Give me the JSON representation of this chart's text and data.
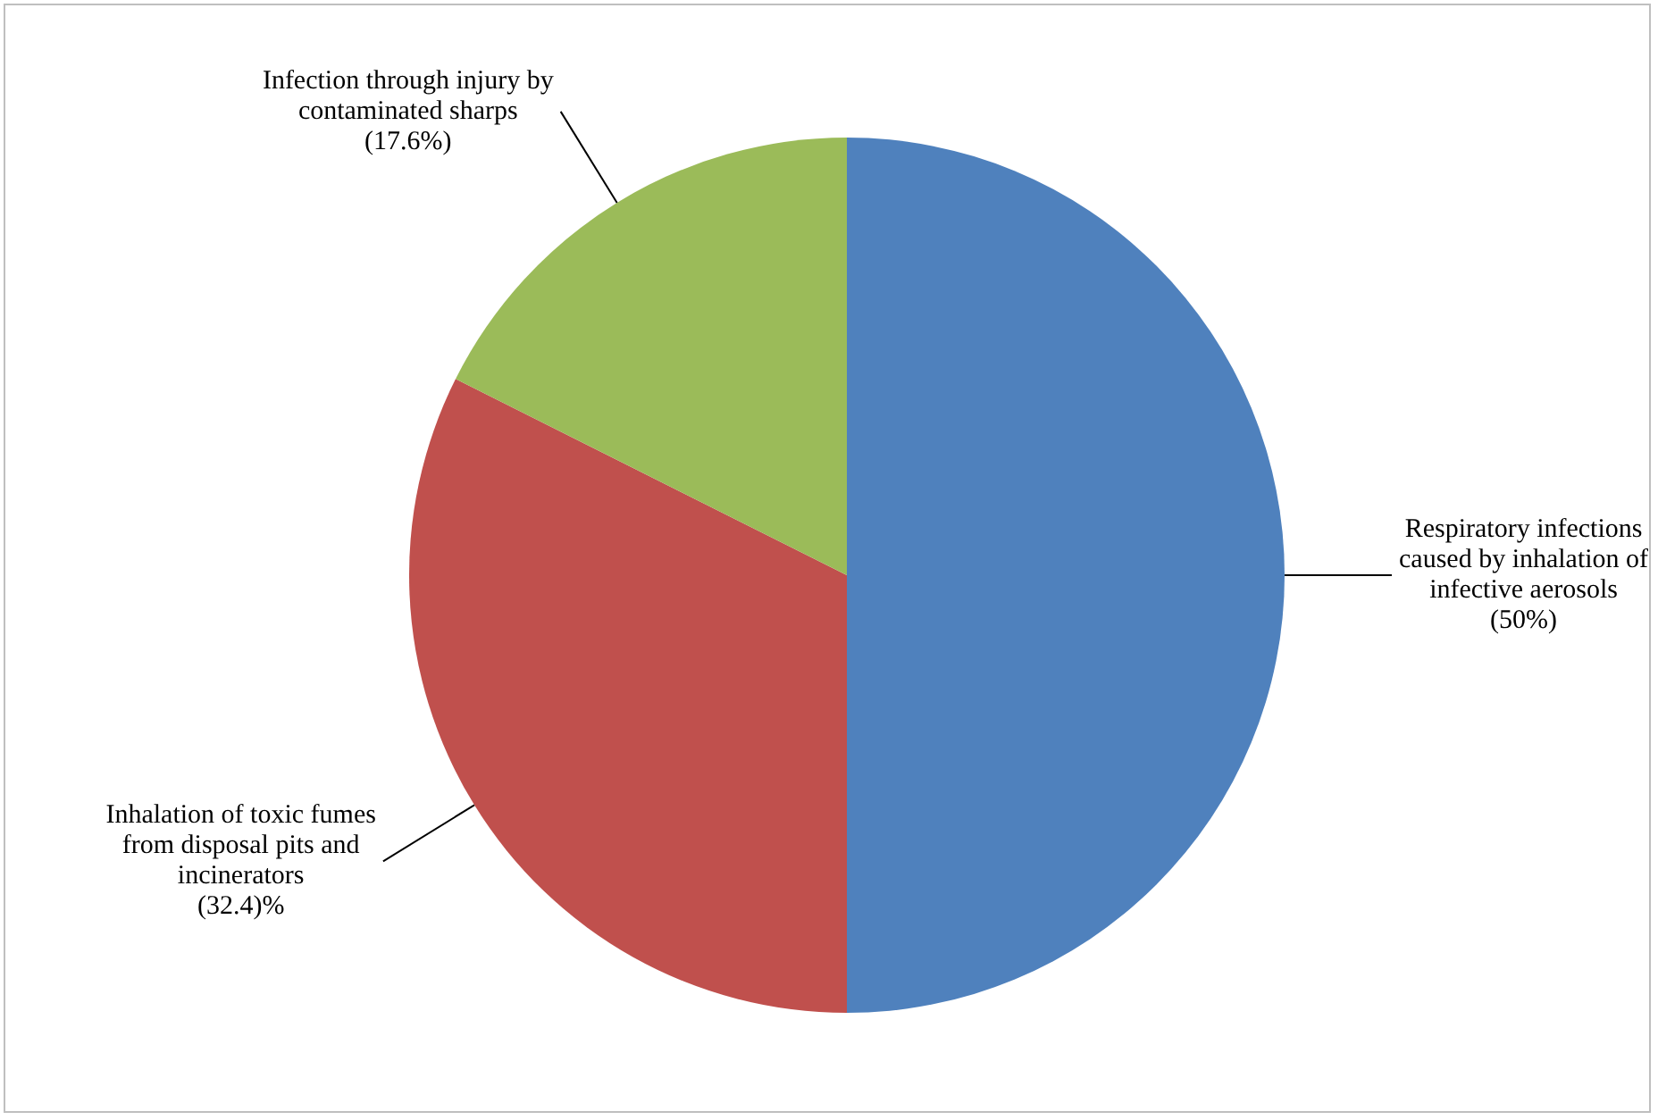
{
  "chart_data": {
    "type": "pie",
    "categories": [
      "Respiratory infections caused by inhalation of infective aerosols",
      "Inhalation of toxic fumes from disposal pits and incinerators",
      "Infection through injury by contaminated sharps"
    ],
    "values": [
      50,
      32.4,
      17.6
    ],
    "colors": [
      "#4f81bd",
      "#c0504d",
      "#9bbb59"
    ],
    "value_labels": [
      "(50%)",
      "(32.4)%",
      "(17.6%)"
    ]
  }
}
